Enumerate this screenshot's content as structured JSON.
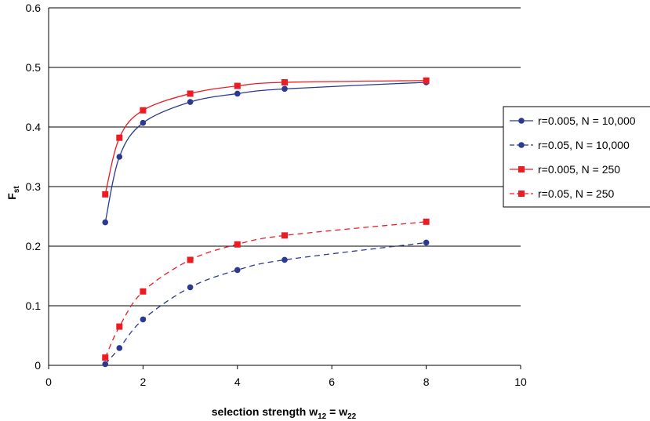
{
  "chart_data": {
    "type": "line",
    "title": "",
    "xlabel": {
      "main": "selection strength w",
      "sub1": "12",
      "mid": " = w",
      "sub2": "22"
    },
    "ylabel": {
      "main": "F",
      "sub": "st"
    },
    "xlim": [
      0,
      10
    ],
    "ylim": [
      0,
      0.6
    ],
    "xticks": [
      "0",
      "2",
      "4",
      "6",
      "8",
      "10"
    ],
    "yticks": [
      "0",
      "0.1",
      "0.2",
      "0.3",
      "0.4",
      "0.5",
      "0.6"
    ],
    "grid": "horizontal",
    "legend_position": "right",
    "series": [
      {
        "name": "r=0.005, N = 10,000",
        "color": "#2b3990",
        "marker": "circle",
        "dash": "solid",
        "x": [
          1.2,
          1.5,
          2,
          3,
          4,
          5,
          8
        ],
        "y": [
          0.24,
          0.35,
          0.407,
          0.442,
          0.456,
          0.464,
          0.475
        ]
      },
      {
        "name": "r=0.05, N = 10,000",
        "color": "#2b3990",
        "marker": "circle",
        "dash": "dashed",
        "x": [
          1.2,
          1.5,
          2,
          3,
          4,
          5,
          8
        ],
        "y": [
          0.002,
          0.029,
          0.077,
          0.131,
          0.16,
          0.177,
          0.206
        ]
      },
      {
        "name": "r=0.005, N = 250",
        "color": "#ed1c24",
        "marker": "square",
        "dash": "solid",
        "x": [
          1.2,
          1.5,
          2,
          3,
          4,
          5,
          8
        ],
        "y": [
          0.287,
          0.382,
          0.428,
          0.456,
          0.469,
          0.475,
          0.478
        ]
      },
      {
        "name": "r=0.05, N = 250",
        "color": "#ed1c24",
        "marker": "square",
        "dash": "dashed",
        "x": [
          1.2,
          1.5,
          2,
          3,
          4,
          5,
          8
        ],
        "y": [
          0.013,
          0.065,
          0.124,
          0.177,
          0.203,
          0.218,
          0.241
        ]
      }
    ]
  }
}
